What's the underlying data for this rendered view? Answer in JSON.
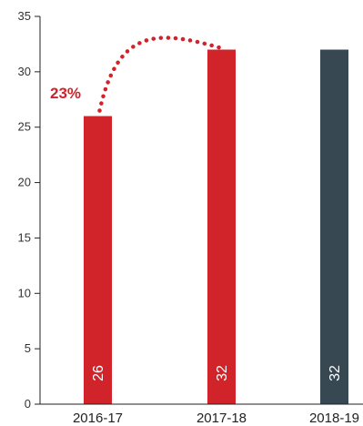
{
  "chart_data": {
    "type": "bar",
    "categories": [
      "2016-17",
      "2017-18",
      "2018-19"
    ],
    "values": [
      26,
      32,
      32
    ],
    "bar_colors": [
      "#d1232a",
      "#d1232a",
      "#374853"
    ],
    "ylim": [
      0,
      35
    ],
    "yticks": [
      0,
      5,
      10,
      15,
      20,
      25,
      30,
      35
    ],
    "title": "",
    "xlabel": "",
    "ylabel": "",
    "grid": false,
    "annotation": {
      "text": "23%",
      "color": "#d1232a",
      "from_category": "2016-17",
      "to_category": "2017-18",
      "style": "dotted-arc"
    }
  }
}
